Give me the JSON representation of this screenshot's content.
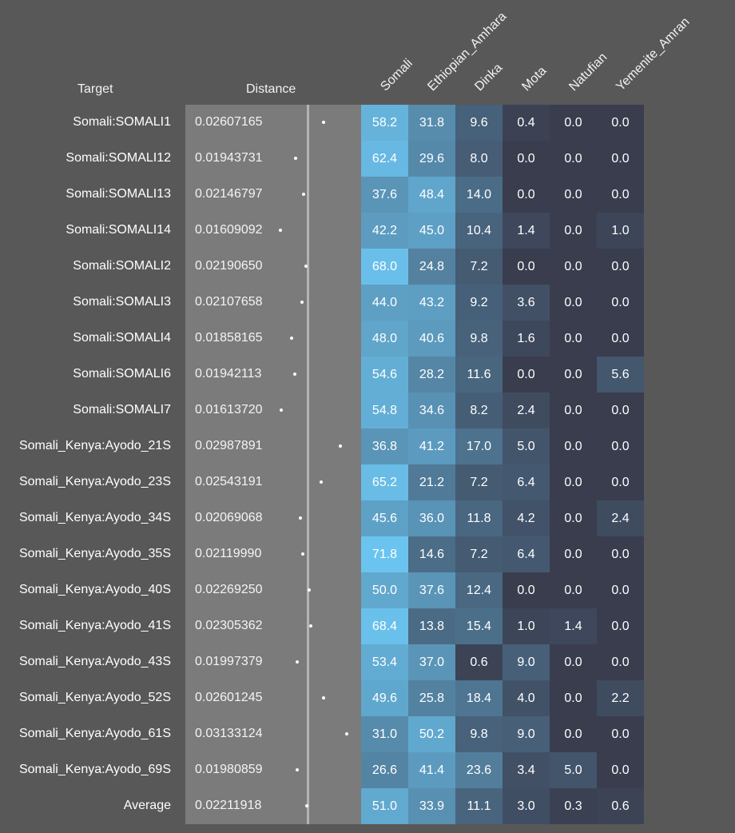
{
  "headers": {
    "target": "Target",
    "distance": "Distance"
  },
  "chart_data": {
    "type": "heatmap",
    "columns": [
      "Somali",
      "Ethiopian_Amhara",
      "Dinka",
      "Mota",
      "Natufian",
      "Yemenite_Amran"
    ],
    "rows": [
      {
        "target": "Somali:SOMALI1",
        "distance": "0.02607165",
        "values": [
          "58.2",
          "31.8",
          "9.6",
          "0.4",
          "0.0",
          "0.0"
        ]
      },
      {
        "target": "Somali:SOMALI12",
        "distance": "0.01943731",
        "values": [
          "62.4",
          "29.6",
          "8.0",
          "0.0",
          "0.0",
          "0.0"
        ]
      },
      {
        "target": "Somali:SOMALI13",
        "distance": "0.02146797",
        "values": [
          "37.6",
          "48.4",
          "14.0",
          "0.0",
          "0.0",
          "0.0"
        ]
      },
      {
        "target": "Somali:SOMALI14",
        "distance": "0.01609092",
        "values": [
          "42.2",
          "45.0",
          "10.4",
          "1.4",
          "0.0",
          "1.0"
        ]
      },
      {
        "target": "Somali:SOMALI2",
        "distance": "0.02190650",
        "values": [
          "68.0",
          "24.8",
          "7.2",
          "0.0",
          "0.0",
          "0.0"
        ]
      },
      {
        "target": "Somali:SOMALI3",
        "distance": "0.02107658",
        "values": [
          "44.0",
          "43.2",
          "9.2",
          "3.6",
          "0.0",
          "0.0"
        ]
      },
      {
        "target": "Somali:SOMALI4",
        "distance": "0.01858165",
        "values": [
          "48.0",
          "40.6",
          "9.8",
          "1.6",
          "0.0",
          "0.0"
        ]
      },
      {
        "target": "Somali:SOMALI6",
        "distance": "0.01942113",
        "values": [
          "54.6",
          "28.2",
          "11.6",
          "0.0",
          "0.0",
          "5.6"
        ]
      },
      {
        "target": "Somali:SOMALI7",
        "distance": "0.01613720",
        "values": [
          "54.8",
          "34.6",
          "8.2",
          "2.4",
          "0.0",
          "0.0"
        ]
      },
      {
        "target": "Somali_Kenya:Ayodo_21S",
        "distance": "0.02987891",
        "values": [
          "36.8",
          "41.2",
          "17.0",
          "5.0",
          "0.0",
          "0.0"
        ]
      },
      {
        "target": "Somali_Kenya:Ayodo_23S",
        "distance": "0.02543191",
        "values": [
          "65.2",
          "21.2",
          "7.2",
          "6.4",
          "0.0",
          "0.0"
        ]
      },
      {
        "target": "Somali_Kenya:Ayodo_34S",
        "distance": "0.02069068",
        "values": [
          "45.6",
          "36.0",
          "11.8",
          "4.2",
          "0.0",
          "2.4"
        ]
      },
      {
        "target": "Somali_Kenya:Ayodo_35S",
        "distance": "0.02119990",
        "values": [
          "71.8",
          "14.6",
          "7.2",
          "6.4",
          "0.0",
          "0.0"
        ]
      },
      {
        "target": "Somali_Kenya:Ayodo_40S",
        "distance": "0.02269250",
        "values": [
          "50.0",
          "37.6",
          "12.4",
          "0.0",
          "0.0",
          "0.0"
        ]
      },
      {
        "target": "Somali_Kenya:Ayodo_41S",
        "distance": "0.02305362",
        "values": [
          "68.4",
          "13.8",
          "15.4",
          "1.0",
          "1.4",
          "0.0"
        ]
      },
      {
        "target": "Somali_Kenya:Ayodo_43S",
        "distance": "0.01997379",
        "values": [
          "53.4",
          "37.0",
          "0.6",
          "9.0",
          "0.0",
          "0.0"
        ]
      },
      {
        "target": "Somali_Kenya:Ayodo_52S",
        "distance": "0.02601245",
        "values": [
          "49.6",
          "25.8",
          "18.4",
          "4.0",
          "0.0",
          "2.2"
        ]
      },
      {
        "target": "Somali_Kenya:Ayodo_61S",
        "distance": "0.03133124",
        "values": [
          "31.0",
          "50.2",
          "9.8",
          "9.0",
          "0.0",
          "0.0"
        ]
      },
      {
        "target": "Somali_Kenya:Ayodo_69S",
        "distance": "0.01980859",
        "values": [
          "26.6",
          "41.4",
          "23.6",
          "3.4",
          "5.0",
          "0.0"
        ]
      },
      {
        "target": "Average",
        "distance": "0.02211918",
        "values": [
          "51.0",
          "33.9",
          "11.1",
          "3.0",
          "0.3",
          "0.6"
        ]
      }
    ],
    "colors": {
      "background": "#585858",
      "distance_panel": "#7b7b7b",
      "axis_line": "#b4b4b4",
      "cell_low": "#3a3d4e",
      "cell_high": "#6bc4f0"
    }
  }
}
